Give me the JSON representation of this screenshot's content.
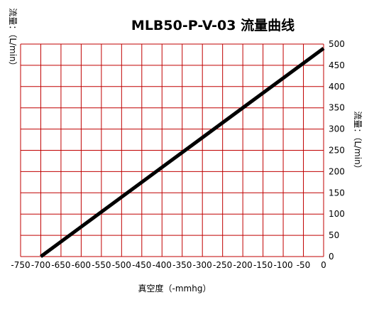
{
  "chart_data": {
    "type": "line",
    "title": "MLB50-P-V-03   流量曲线",
    "xlabel": "真空度（-mmhg）",
    "ylabel_left": "流量：（L/min）",
    "ylabel_right": "流量：（L/min）",
    "xlim": [
      -750,
      0
    ],
    "ylim": [
      0,
      500
    ],
    "x_ticks": [
      -750,
      -700,
      -650,
      -600,
      -550,
      -500,
      -450,
      -400,
      -350,
      -300,
      -250,
      -200,
      -150,
      -100,
      -50,
      0
    ],
    "y_ticks": [
      0,
      50,
      100,
      150,
      200,
      250,
      300,
      350,
      400,
      450,
      500
    ],
    "x_tick_labels": [
      "-750",
      "-700",
      "-650",
      "-600",
      "-550",
      "-500",
      "-450",
      "-400",
      "-350",
      "-300",
      "-250",
      "-200",
      "-150",
      "-100",
      "-50",
      "0"
    ],
    "y_tick_labels": [
      "0",
      "50",
      "100",
      "150",
      "200",
      "250",
      "300",
      "350",
      "400",
      "450",
      "500"
    ],
    "grid": true,
    "grid_color": "#c00000",
    "line_color": "#000000",
    "series": [
      {
        "x": [
          -700,
          -600,
          -500,
          -400,
          -300,
          -200,
          -100,
          0
        ],
        "y": [
          0,
          70,
          140,
          210,
          280,
          350,
          420,
          490
        ]
      }
    ]
  }
}
